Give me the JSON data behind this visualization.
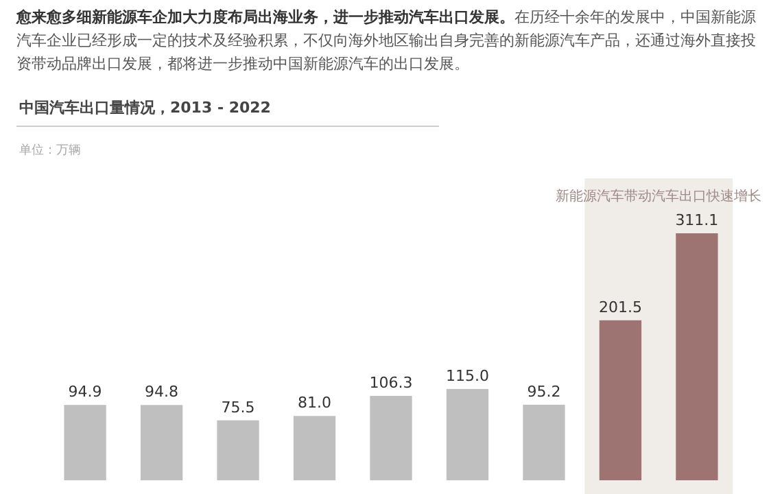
{
  "chart_data": {
    "type": "bar",
    "title": "中国汽车出口量情况，2013 - 2022",
    "annotations": [
      "愈来愈多细新能源车企加大力度布局出海业务，进一步推动汽车出口发展。",
      "在历经十余年的发展中，中国新能源汽车企业已经形成一定的技术及经验积累，不仅向海外地区输出自身完善的新能源汽车产品，还通过海外直接投资带动品牌出口发展，都将进一步推动中国新能源汽车的出口发展。",
      "新能源汽车带动汽车出口快速增长",
      "单位：万辆"
    ],
    "categories": [
      null,
      null,
      null,
      null,
      null,
      null,
      null,
      null,
      null
    ],
    "values": [
      94.9,
      94.8,
      75.5,
      81.0,
      106.3,
      115.0,
      95.2,
      201.5,
      311.1
    ],
    "colors": [
      "#bfbfbf",
      "#bfbfbf",
      "#bfbfbf",
      "#bfbfbf",
      "#bfbfbf",
      "#bfbfbf",
      "#bfbfbf",
      "#9e7473",
      "#9e7473"
    ],
    "value_labels": [
      "94.9",
      "94.8",
      "75.5",
      "81.0",
      "106.3",
      "115.0",
      "95.2",
      "201.5",
      "311.1"
    ]
  }
}
